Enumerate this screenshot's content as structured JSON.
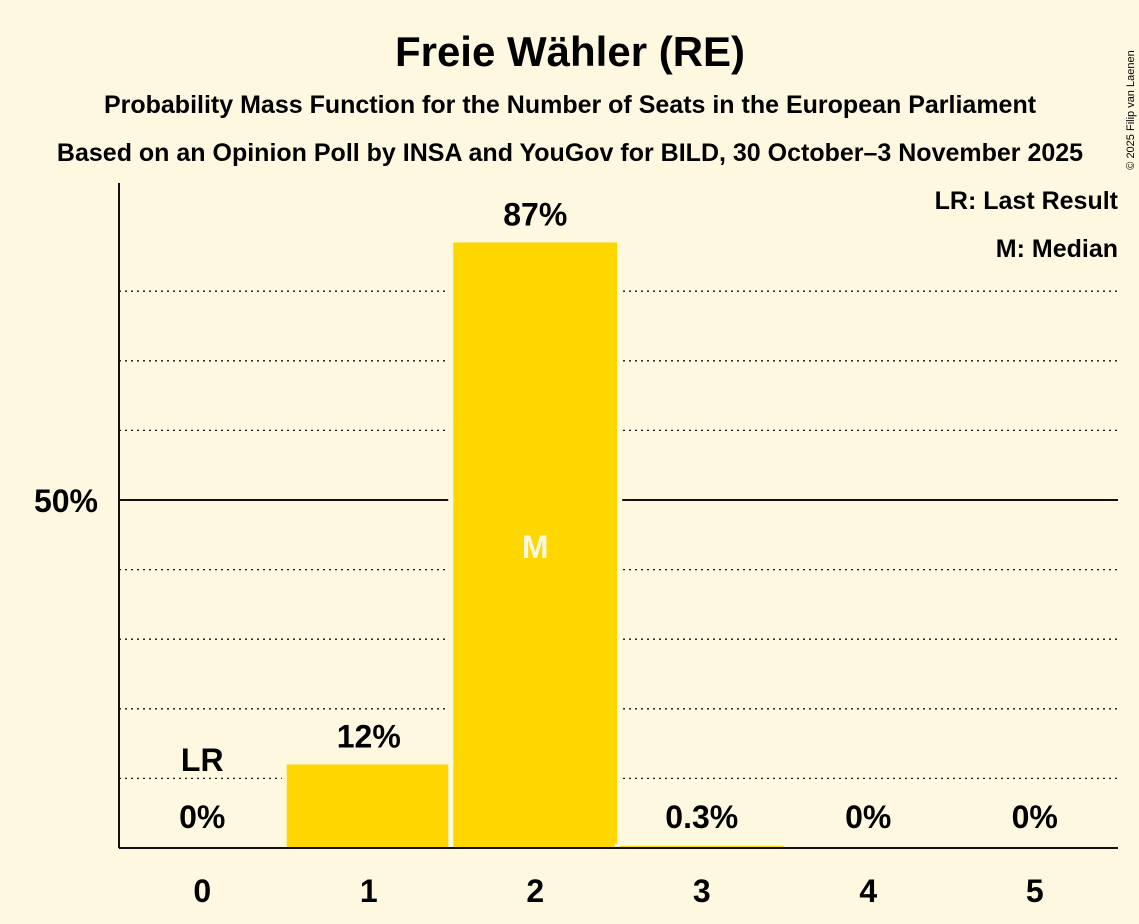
{
  "chart_data": {
    "type": "bar",
    "title": "Freie Wähler (RE)",
    "subtitle": "Probability Mass Function for the Number of Seats in the European Parliament",
    "source_line": "Based on an Opinion Poll by INSA and YouGov for BILD, 30 October–3 November 2025",
    "copyright": "© 2025 Filip van Laenen",
    "categories": [
      "0",
      "1",
      "2",
      "3",
      "4",
      "5"
    ],
    "values": [
      0,
      12,
      87,
      0.3,
      0,
      0
    ],
    "value_labels": [
      "0%",
      "12%",
      "87%",
      "0.3%",
      "0%",
      "0%"
    ],
    "ylim": [
      0,
      95
    ],
    "y_tick_label": "50%",
    "y_tick_value": 50,
    "gridlines": [
      10,
      20,
      30,
      40,
      60,
      70,
      80
    ],
    "last_result_index": 0,
    "last_result_marker": "LR",
    "median_index": 2,
    "median_marker": "M",
    "legend": [
      "LR: Last Result",
      "M: Median"
    ],
    "colors": {
      "bar": "#FFD700",
      "background": "#FFF8E1",
      "text": "#111111",
      "median_text": "#FFF8E1"
    }
  }
}
